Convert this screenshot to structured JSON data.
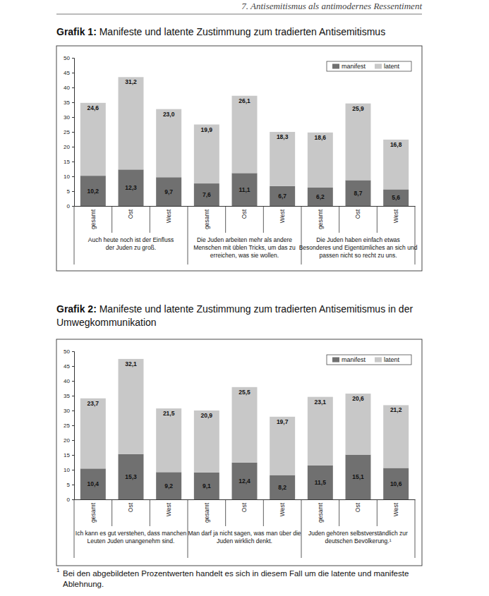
{
  "page_header": "7. Antisemitismus als antimodernes Ressentiment",
  "chart_data": [
    {
      "type": "bar",
      "title": "Grafik 1: Manifeste und latente Zustimmung zum tradierten Antisemitismus",
      "categories": [
        "gesamt",
        "Ost",
        "West",
        "gesamt",
        "Ost",
        "West",
        "gesamt",
        "Ost",
        "West"
      ],
      "category_groups": [
        "Auch heute noch ist der Einfluss\nder Juden zu groß.",
        "Die Juden arbeiten mehr als andere\nMenschen mit üblen Tricks, um das zu\nerreichen, was sie wollen.",
        "Die Juden haben einfach etwas\nBesonderes und Eigentümliches an sich und\npassen nicht so recht zu uns."
      ],
      "series": [
        {
          "name": "manifest",
          "color": "#707070",
          "values": [
            10.2,
            12.3,
            9.7,
            7.6,
            11.1,
            6.7,
            6.2,
            8.7,
            5.6
          ],
          "value_labels": [
            "10,2",
            "12,3",
            "9,7",
            "7,6",
            "11,1",
            "6,7",
            "6,2",
            "8,7",
            "5,6"
          ]
        },
        {
          "name": "latent",
          "color": "#c8c8c8",
          "values": [
            24.6,
            31.2,
            23.0,
            19.9,
            26.1,
            18.3,
            18.6,
            25.9,
            16.8
          ],
          "value_labels": [
            "24,6",
            "31,2",
            "23,0",
            "19,9",
            "26,1",
            "18,3",
            "18,6",
            "25,9",
            "16,8"
          ]
        }
      ],
      "stacked": true,
      "data_labels": true,
      "grid": false,
      "legend": "top-right",
      "ylim": [
        0,
        50
      ],
      "yticks": [
        0,
        5,
        10,
        15,
        20,
        25,
        30,
        35,
        40,
        45,
        50
      ]
    },
    {
      "type": "bar",
      "title": "Grafik 2: Manifeste und latente Zustimmung zum tradierten Antisemitismus in der Umwegkommunikation",
      "categories": [
        "gesamt",
        "Ost",
        "West",
        "gesamt",
        "Ost",
        "West",
        "gesamt",
        "Ost",
        "West"
      ],
      "category_groups": [
        "Ich kann es gut verstehen, dass manchen\nLeuten Juden unangenehm sind.",
        "Man darf ja nicht sagen, was man über die\nJuden wirklich denkt.",
        "Juden gehören selbstverständlich zur\ndeutschen Bevölkerung.¹"
      ],
      "series": [
        {
          "name": "manifest",
          "color": "#707070",
          "values": [
            10.4,
            15.3,
            9.2,
            9.1,
            12.4,
            8.2,
            11.5,
            15.1,
            10.6
          ],
          "value_labels": [
            "10,4",
            "15,3",
            "9,2",
            "9,1",
            "12,4",
            "8,2",
            "11,5",
            "15,1",
            "10,6"
          ]
        },
        {
          "name": "latent",
          "color": "#c8c8c8",
          "values": [
            23.7,
            32.1,
            21.5,
            20.9,
            25.5,
            19.7,
            23.1,
            20.6,
            21.2
          ],
          "value_labels": [
            "23,7",
            "32,1",
            "21,5",
            "20,9",
            "25,5",
            "19,7",
            "23,1",
            "20,6",
            "21,2"
          ]
        }
      ],
      "stacked": true,
      "data_labels": true,
      "grid": false,
      "legend": "top-right",
      "ylim": [
        0,
        50
      ],
      "yticks": [
        0,
        5,
        10,
        15,
        20,
        25,
        30,
        35,
        40,
        45,
        50
      ]
    }
  ],
  "footnote": {
    "mark": "1",
    "text": "Bei den abgebildeten Prozentwerten handelt es sich in diesem Fall um die latente und manifeste Ablehnung."
  }
}
